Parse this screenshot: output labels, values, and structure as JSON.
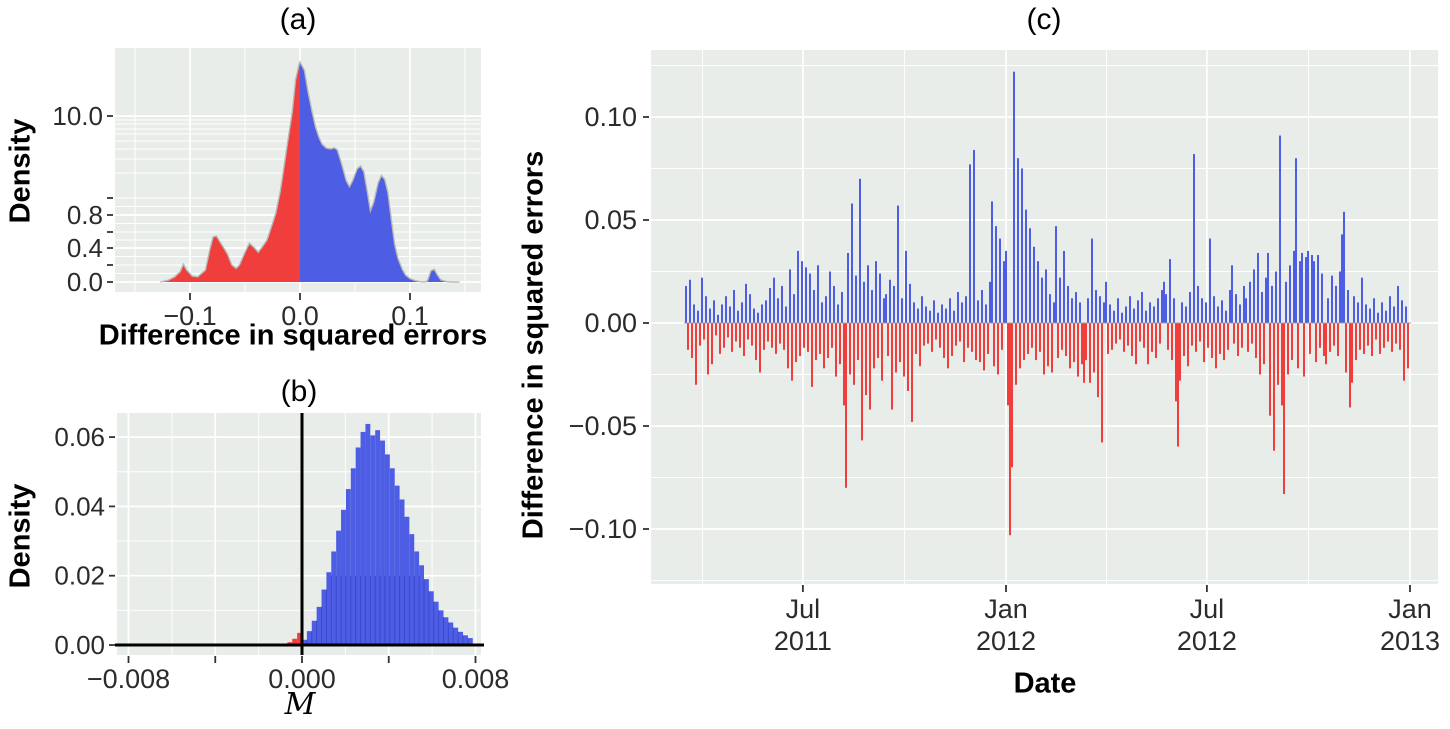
{
  "colors": {
    "background": "#ffffff",
    "panel_bg": "#E9EDEA",
    "grid": "#ffffff",
    "blue": "#4D5DE4",
    "blue_dark": "#3A49CF",
    "red": "#EF3E3C",
    "axis_text": "#2B2B2B",
    "tick": "#333333",
    "curve_stroke": "#B9B9B9",
    "zero_line": "#999999",
    "black": "#000000"
  },
  "chart_data": [
    {
      "id": "a",
      "type": "area",
      "title": "(a)",
      "xlabel": "Difference in squared errors",
      "ylabel": "Density",
      "y_scale": "nonlinear (compressed above 1.0)",
      "xlim": [
        -0.168,
        0.165
      ],
      "x_ticks": [
        {
          "v": -0.1,
          "label": "−0.1"
        },
        {
          "v": 0.0,
          "label": "0.0"
        },
        {
          "v": 0.1,
          "label": "0.1"
        }
      ],
      "x_minor_grid": [
        -0.15,
        -0.05,
        0.05,
        0.15
      ],
      "y_ticks": [
        {
          "v": 10,
          "label": "10.0"
        },
        {
          "v": 0.8,
          "label": "0.8"
        },
        {
          "v": 0.4,
          "label": "0.4"
        },
        {
          "v": 0.0,
          "label": "0.0"
        }
      ],
      "y_tick_marks": [
        0,
        0.2,
        0.4,
        0.6,
        0.8,
        1,
        10
      ],
      "y_major_grid": [
        0,
        0.4,
        0.8,
        10
      ],
      "y_minor_grid": [
        0.1,
        0.2,
        0.3,
        0.5,
        0.6,
        0.7,
        0.9,
        1,
        2,
        3,
        4,
        5,
        6,
        7,
        8,
        9
      ],
      "split_x": 0,
      "fill_negative": "red",
      "fill_positive": "blue",
      "points": [
        [
          -0.127,
          0
        ],
        [
          -0.12,
          0.02
        ],
        [
          -0.114,
          0.06
        ],
        [
          -0.109,
          0.12
        ],
        [
          -0.106,
          0.21
        ],
        [
          -0.103,
          0.14
        ],
        [
          -0.098,
          0.07
        ],
        [
          -0.093,
          0.06
        ],
        [
          -0.086,
          0.14
        ],
        [
          -0.082,
          0.38
        ],
        [
          -0.079,
          0.54
        ],
        [
          -0.076,
          0.55
        ],
        [
          -0.072,
          0.46
        ],
        [
          -0.066,
          0.33
        ],
        [
          -0.062,
          0.2
        ],
        [
          -0.058,
          0.16
        ],
        [
          -0.055,
          0.2
        ],
        [
          -0.05,
          0.35
        ],
        [
          -0.046,
          0.46
        ],
        [
          -0.042,
          0.41
        ],
        [
          -0.038,
          0.35
        ],
        [
          -0.035,
          0.4
        ],
        [
          -0.03,
          0.5
        ],
        [
          -0.025,
          0.7
        ],
        [
          -0.022,
          0.82
        ],
        [
          -0.018,
          1.25
        ],
        [
          -0.015,
          2.2
        ],
        [
          -0.011,
          5.1
        ],
        [
          -0.007,
          10.4
        ],
        [
          -0.004,
          13.5
        ],
        [
          -0.001,
          14.9
        ],
        [
          0,
          15.2
        ],
        [
          0.004,
          14.4
        ],
        [
          0.007,
          12.5
        ],
        [
          0.011,
          10.4
        ],
        [
          0.014,
          7.5
        ],
        [
          0.017,
          5.6
        ],
        [
          0.02,
          4.6
        ],
        [
          0.024,
          4.1
        ],
        [
          0.028,
          4.0
        ],
        [
          0.031,
          4.15
        ],
        [
          0.034,
          3.9
        ],
        [
          0.038,
          2.6
        ],
        [
          0.042,
          1.7
        ],
        [
          0.045,
          1.45
        ],
        [
          0.048,
          1.7
        ],
        [
          0.052,
          2.3
        ],
        [
          0.055,
          2.5
        ],
        [
          0.058,
          2.1
        ],
        [
          0.061,
          1.3
        ],
        [
          0.064,
          0.85
        ],
        [
          0.067,
          0.95
        ],
        [
          0.071,
          1.6
        ],
        [
          0.074,
          1.9
        ],
        [
          0.077,
          1.75
        ],
        [
          0.08,
          1.2
        ],
        [
          0.083,
          0.75
        ],
        [
          0.086,
          0.45
        ],
        [
          0.089,
          0.28
        ],
        [
          0.093,
          0.15
        ],
        [
          0.096,
          0.08
        ],
        [
          0.1,
          0.04
        ],
        [
          0.105,
          0.015
        ],
        [
          0.11,
          0.004
        ],
        [
          0.113,
          0
        ],
        [
          0.116,
          0.015
        ],
        [
          0.119,
          0.13
        ],
        [
          0.122,
          0.15
        ],
        [
          0.125,
          0.08
        ],
        [
          0.128,
          0.025
        ],
        [
          0.133,
          0.005
        ],
        [
          0.138,
          0
        ],
        [
          0.145,
          0
        ]
      ]
    },
    {
      "id": "b",
      "type": "bar",
      "title": "(b)",
      "xlabel": "M",
      "ylabel": "Density",
      "xlim": [
        -0.00854,
        0.00826
      ],
      "ylim": [
        -0.003,
        0.067
      ],
      "x_ticks": [
        {
          "v": -0.008,
          "label": "−0.008"
        },
        {
          "v": 0.0,
          "label": "0.000"
        },
        {
          "v": 0.008,
          "label": "0.008"
        }
      ],
      "x_minor_tick_marks": [
        -0.004,
        0.004
      ],
      "x_major_grid": [
        -0.008,
        -0.004,
        0,
        0.004,
        0.008
      ],
      "x_minor_grid": [
        -0.006,
        -0.002,
        0.002,
        0.006
      ],
      "y_ticks": [
        {
          "v": 0.06,
          "label": "0.06"
        },
        {
          "v": 0.04,
          "label": "0.04"
        },
        {
          "v": 0.02,
          "label": "0.02"
        },
        {
          "v": 0.0,
          "label": "0.00"
        }
      ],
      "y_major_grid": [
        0,
        0.02,
        0.04,
        0.06
      ],
      "y_minor_grid": [
        0.01,
        0.03,
        0.05
      ],
      "vline_x": 0,
      "hline_y": 0,
      "bin_width": 0.000225,
      "red_bins": {
        "start": -0.000675,
        "heights": [
          0.0008,
          0.0018,
          0.0035
        ]
      },
      "blue_bins": {
        "start": 0,
        "heights": [
          0.0015,
          0.004,
          0.007,
          0.011,
          0.016,
          0.021,
          0.027,
          0.033,
          0.039,
          0.045,
          0.051,
          0.057,
          0.0615,
          0.0638,
          0.0605,
          0.062,
          0.059,
          0.055,
          0.051,
          0.046,
          0.042,
          0.037,
          0.032,
          0.027,
          0.023,
          0.019,
          0.0155,
          0.0125,
          0.01,
          0.008,
          0.0065,
          0.005,
          0.0038,
          0.0028,
          0.002
        ]
      }
    },
    {
      "id": "c",
      "type": "bar",
      "title": "(c)",
      "xlabel": "Date",
      "ylabel": "Difference in squared errors",
      "ylim": [
        -0.127,
        0.133
      ],
      "y_ticks": [
        {
          "v": 0.1,
          "label": "0.10"
        },
        {
          "v": 0.05,
          "label": "0.05"
        },
        {
          "v": 0.0,
          "label": "0.00"
        },
        {
          "v": -0.05,
          "label": "−0.05"
        },
        {
          "v": -0.1,
          "label": "−0.10"
        }
      ],
      "y_minor_grid": [
        0.125,
        0.075,
        0.025,
        -0.025,
        -0.075,
        -0.125
      ],
      "x_ticks": [
        {
          "date": "2011-07-01",
          "line1": "Jul",
          "line2": "2011"
        },
        {
          "date": "2012-01-01",
          "line1": "Jan",
          "line2": "2012"
        },
        {
          "date": "2012-07-01",
          "line1": "Jul",
          "line2": "2012"
        },
        {
          "date": "2013-01-01",
          "line1": "Jan",
          "line2": "2013"
        }
      ],
      "x_minor_grid_dates": [
        "2011-04-01",
        "2011-10-01",
        "2012-04-01",
        "2012-10-01"
      ],
      "series": {
        "start_date": "2011-03-17",
        "end_date": "2012-12-30",
        "step_days": 1.81,
        "values": [
          0.018,
          -0.013,
          0.021,
          -0.017,
          0.009,
          -0.03,
          0.006,
          -0.011,
          0.022,
          -0.008,
          0.013,
          -0.025,
          0.007,
          -0.02,
          0.011,
          -0.006,
          0.004,
          -0.015,
          0.009,
          -0.012,
          0.013,
          -0.007,
          0.008,
          -0.014,
          0.016,
          -0.009,
          0.006,
          -0.012,
          0.01,
          -0.016,
          0.019,
          -0.008,
          0.014,
          -0.011,
          0.007,
          -0.018,
          0.005,
          -0.024,
          0.009,
          -0.013,
          0.011,
          -0.009,
          0.017,
          -0.012,
          0.022,
          -0.015,
          0.012,
          -0.01,
          0.018,
          -0.013,
          0.008,
          -0.022,
          0.026,
          -0.028,
          0.014,
          -0.019,
          0.035,
          -0.016,
          0.03,
          -0.012,
          0.027,
          -0.014,
          0.024,
          -0.031,
          0.016,
          -0.018,
          0.028,
          -0.015,
          0.01,
          -0.022,
          0.013,
          -0.017,
          0.025,
          -0.012,
          0.018,
          -0.026,
          0.009,
          -0.02,
          0.015,
          -0.04,
          -0.08,
          0.034,
          -0.025,
          0.058,
          -0.03,
          0.023,
          -0.018,
          0.07,
          -0.057,
          0.02,
          -0.035,
          0.028,
          -0.042,
          0.016,
          -0.022,
          0.03,
          -0.017,
          0.024,
          -0.028,
          0.012,
          0.014,
          -0.016,
          0.021,
          -0.042,
          0.018,
          -0.024,
          0.057,
          -0.019,
          0.012,
          -0.026,
          0.035,
          -0.033,
          0.019,
          -0.048,
          0.01,
          -0.015,
          0.007,
          -0.021,
          0.013,
          -0.011,
          0.008,
          -0.01,
          0.006,
          -0.014,
          0.011,
          -0.008,
          0.005,
          -0.012,
          0.009,
          -0.017,
          0.007,
          -0.022,
          0.012,
          -0.016,
          0.006,
          -0.011,
          0.015,
          -0.009,
          0.01,
          -0.019,
          0.013,
          -0.012,
          0.077,
          -0.014,
          0.084,
          -0.018,
          0.011,
          -0.019,
          0.016,
          -0.023,
          0.009,
          -0.015,
          0.02,
          0.059,
          -0.021,
          0.047,
          -0.025,
          0.041,
          -0.013,
          0.03,
          0.035,
          -0.04,
          -0.103,
          -0.07,
          0.122,
          -0.03,
          0.08,
          -0.022,
          0.075,
          -0.018,
          0.055,
          -0.015,
          0.046,
          -0.012,
          0.037,
          -0.018,
          0.03,
          -0.014,
          0.022,
          -0.025,
          0.026,
          -0.021,
          0.014,
          -0.024,
          0.01,
          0.047,
          -0.017,
          0.022,
          -0.013,
          0.035,
          -0.016,
          0.018,
          -0.022,
          0.012,
          -0.019,
          0.015,
          -0.026,
          0.01,
          -0.02,
          -0.029,
          -0.018,
          0.012,
          -0.029,
          0.041,
          -0.024,
          0.016,
          -0.036,
          0.013,
          -0.058,
          0.01,
          0.02,
          -0.015,
          0.009,
          -0.013,
          0.006,
          -0.01,
          0.012,
          -0.008,
          0.005,
          -0.014,
          0.008,
          -0.011,
          0.013,
          -0.016,
          0.007,
          -0.02,
          0.011,
          -0.009,
          0.015,
          -0.012,
          0.006,
          -0.02,
          0.01,
          -0.014,
          0.008,
          -0.017,
          0.012,
          -0.01,
          0.016,
          0.02,
          0.014,
          -0.013,
          0.031,
          -0.018,
          0.012,
          -0.038,
          -0.06,
          -0.028,
          0.01,
          -0.016,
          0.008,
          -0.021,
          0.015,
          -0.011,
          0.082,
          -0.014,
          0.018,
          -0.009,
          0.012,
          -0.019,
          0.01,
          -0.012,
          0.041,
          -0.017,
          0.013,
          -0.022,
          0.008,
          -0.015,
          0.011,
          -0.018,
          0.006,
          -0.013,
          0.016,
          0.028,
          -0.01,
          0.014,
          -0.016,
          0.009,
          -0.012,
          0.018,
          0.012,
          -0.014,
          0.02,
          -0.01,
          0.026,
          -0.017,
          0.034,
          -0.025,
          0.015,
          -0.02,
          0.022,
          0.034,
          -0.045,
          0.018,
          -0.062,
          0.025,
          -0.03,
          0.091,
          -0.04,
          -0.083,
          0.02,
          -0.025,
          0.028,
          -0.018,
          0.035,
          0.08,
          -0.022,
          0.03,
          0.034,
          -0.026,
          0.032,
          0.035,
          -0.015,
          0.033,
          0.03,
          -0.019,
          0.033,
          -0.012,
          0.024,
          -0.016,
          -0.02,
          0.012,
          -0.014,
          0.023,
          -0.011,
          0.018,
          -0.016,
          0.025,
          0.043,
          0.054,
          -0.024,
          0.016,
          -0.041,
          -0.029,
          0.013,
          -0.018,
          0.01,
          -0.013,
          0.022,
          -0.015,
          0.009,
          -0.011,
          0.007,
          -0.016,
          0.012,
          -0.008,
          0.005,
          -0.015,
          0.01,
          -0.012,
          0.006,
          -0.009,
          0.013,
          -0.014,
          0.008,
          -0.01,
          0.018,
          -0.013,
          0.011,
          -0.028,
          0.008,
          -0.022
        ]
      }
    }
  ]
}
